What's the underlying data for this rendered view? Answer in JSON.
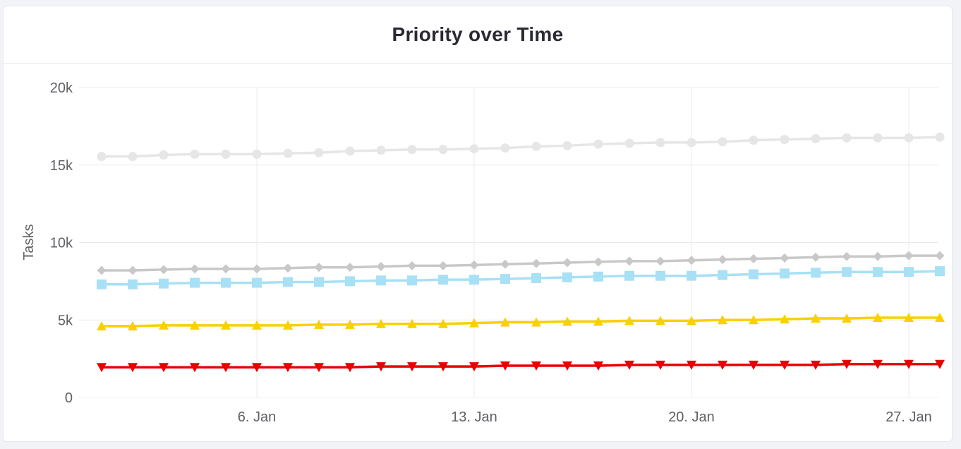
{
  "card": {
    "title": "Priority over Time"
  },
  "chart_data": {
    "type": "line",
    "title": "Priority over Time",
    "xlabel": "",
    "ylabel": "Tasks",
    "ylim": [
      0,
      20000
    ],
    "y_ticks": [
      0,
      5000,
      10000,
      15000,
      20000
    ],
    "y_tick_labels": [
      "0",
      "5k",
      "10k",
      "15k",
      "20k"
    ],
    "x_tick_labels": [
      {
        "day": 6,
        "label": "6. Jan"
      },
      {
        "day": 13,
        "label": "13. Jan"
      },
      {
        "day": 20,
        "label": "20. Jan"
      },
      {
        "day": 27,
        "label": "27. Jan"
      }
    ],
    "x": [
      1,
      2,
      3,
      4,
      5,
      6,
      7,
      8,
      9,
      10,
      11,
      12,
      13,
      14,
      15,
      16,
      17,
      18,
      19,
      20,
      21,
      22,
      23,
      24,
      25,
      26,
      27,
      28
    ],
    "grid": true,
    "legend": "none",
    "series": [
      {
        "color": "#e6e6e6",
        "marker": "circle",
        "values": [
          15550,
          15550,
          15650,
          15700,
          15700,
          15700,
          15750,
          15800,
          15900,
          15950,
          16000,
          16000,
          16050,
          16100,
          16200,
          16250,
          16350,
          16400,
          16450,
          16450,
          16500,
          16600,
          16650,
          16700,
          16750,
          16750,
          16750,
          16800
        ]
      },
      {
        "color": "#c8c8c8",
        "marker": "diamond",
        "values": [
          8200,
          8200,
          8250,
          8300,
          8300,
          8300,
          8350,
          8400,
          8400,
          8450,
          8500,
          8500,
          8550,
          8600,
          8650,
          8700,
          8750,
          8800,
          8800,
          8850,
          8900,
          8950,
          9000,
          9050,
          9100,
          9100,
          9150,
          9150
        ]
      },
      {
        "color": "#a8e0f5",
        "marker": "square",
        "values": [
          7300,
          7300,
          7350,
          7400,
          7400,
          7400,
          7450,
          7450,
          7500,
          7550,
          7550,
          7600,
          7600,
          7650,
          7700,
          7750,
          7800,
          7850,
          7850,
          7850,
          7900,
          7950,
          8000,
          8050,
          8100,
          8100,
          8100,
          8150
        ]
      },
      {
        "color": "#f9d000",
        "marker": "triangle-up",
        "values": [
          4600,
          4600,
          4650,
          4650,
          4650,
          4650,
          4650,
          4700,
          4700,
          4750,
          4750,
          4750,
          4800,
          4850,
          4850,
          4900,
          4900,
          4950,
          4950,
          4950,
          5000,
          5000,
          5050,
          5100,
          5100,
          5150,
          5150,
          5150
        ]
      },
      {
        "color": "#e80000",
        "marker": "triangle-down",
        "values": [
          1950,
          1950,
          1950,
          1950,
          1950,
          1950,
          1950,
          1950,
          1950,
          2000,
          2000,
          2000,
          2000,
          2050,
          2050,
          2050,
          2050,
          2100,
          2100,
          2100,
          2100,
          2100,
          2100,
          2100,
          2150,
          2150,
          2150,
          2150
        ]
      }
    ]
  }
}
